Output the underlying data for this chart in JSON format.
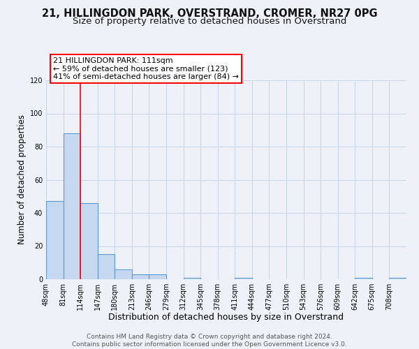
{
  "title": "21, HILLINGDON PARK, OVERSTRAND, CROMER, NR27 0PG",
  "subtitle": "Size of property relative to detached houses in Overstrand",
  "bar_edges": [
    48,
    81,
    114,
    147,
    180,
    213,
    246,
    279,
    312,
    345,
    378,
    411,
    444,
    477,
    510,
    543,
    576,
    609,
    642,
    675,
    708
  ],
  "bar_heights": [
    47,
    88,
    46,
    15,
    6,
    3,
    3,
    0,
    1,
    0,
    0,
    1,
    0,
    0,
    0,
    0,
    0,
    0,
    1,
    0,
    1
  ],
  "bar_color": "#c5d8f0",
  "bar_edge_color": "#5b9bd5",
  "red_line_x": 114,
  "annotation_text": "21 HILLINGDON PARK: 111sqm\n← 59% of detached houses are smaller (123)\n41% of semi-detached houses are larger (84) →",
  "annotation_box_color": "white",
  "annotation_box_edge_color": "red",
  "xlabel": "Distribution of detached houses by size in Overstrand",
  "ylabel": "Number of detached properties",
  "ylim": [
    0,
    120
  ],
  "yticks": [
    0,
    20,
    40,
    60,
    80,
    100,
    120
  ],
  "xtick_labels": [
    "48sqm",
    "81sqm",
    "114sqm",
    "147sqm",
    "180sqm",
    "213sqm",
    "246sqm",
    "279sqm",
    "312sqm",
    "345sqm",
    "378sqm",
    "411sqm",
    "444sqm",
    "477sqm",
    "510sqm",
    "543sqm",
    "576sqm",
    "609sqm",
    "642sqm",
    "675sqm",
    "708sqm"
  ],
  "footer_text": "Contains HM Land Registry data © Crown copyright and database right 2024.\nContains public sector information licensed under the Open Government Licence v3.0.",
  "background_color": "#eef2f8",
  "grid_color": "#c8d8ec",
  "title_fontsize": 10.5,
  "subtitle_fontsize": 9.5,
  "xlabel_fontsize": 9,
  "ylabel_fontsize": 8.5,
  "tick_fontsize": 7,
  "annotation_fontsize": 8,
  "footer_fontsize": 6.5
}
